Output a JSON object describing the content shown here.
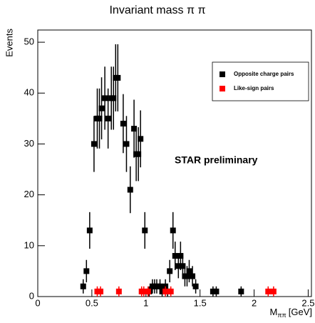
{
  "chart_data": {
    "type": "errorbar",
    "title": "Invariant mass π π",
    "y_label": "Events",
    "x_label": "M",
    "x_label_subscript": "ππ",
    "x_label_unit": "[GeV]",
    "annotation": "STAR preliminary",
    "xlim": [
      0,
      2.53
    ],
    "ylim": [
      0,
      52.4
    ],
    "xticks": [
      0,
      0.5,
      1,
      1.5,
      2,
      2.5
    ],
    "yticks": [
      0,
      10,
      20,
      30,
      40,
      50
    ],
    "legend": "upper right",
    "series": [
      {
        "name": "Opposite charge pairs",
        "color": "#000000",
        "x": [
          0.42,
          0.45,
          0.48,
          0.52,
          0.55,
          0.57,
          0.59,
          0.62,
          0.65,
          0.68,
          0.7,
          0.72,
          0.74,
          0.79,
          0.82,
          0.855,
          0.89,
          0.91,
          0.93,
          0.95,
          0.99,
          1.03,
          1.06,
          1.08,
          1.1,
          1.13,
          1.15,
          1.18,
          1.2,
          1.22,
          1.25,
          1.27,
          1.3,
          1.32,
          1.34,
          1.36,
          1.38,
          1.4,
          1.43,
          1.46,
          1.62,
          1.65,
          1.88
        ],
        "values": [
          2,
          5,
          13,
          30,
          35,
          35,
          37,
          39,
          35,
          39,
          39,
          43,
          43,
          34,
          30,
          21,
          33,
          28,
          28,
          31,
          13,
          1,
          2,
          2,
          2,
          2,
          1,
          2,
          1,
          5,
          13,
          8,
          6,
          8,
          6,
          4,
          4,
          5,
          4,
          2,
          1,
          1,
          1
        ],
        "errors": [
          1.4,
          2.2,
          3.6,
          5.5,
          5.9,
          5.9,
          6.1,
          6.2,
          5.9,
          6.2,
          6.2,
          6.6,
          6.6,
          5.8,
          5.5,
          4.6,
          5.7,
          5.3,
          5.3,
          5.6,
          3.6,
          1,
          1.4,
          1.4,
          1.4,
          1.4,
          1,
          1.4,
          1,
          2.2,
          3.6,
          2.8,
          2.4,
          2.8,
          2.4,
          2,
          2,
          2.2,
          2,
          1.4,
          1,
          1,
          1
        ]
      },
      {
        "name": "Like-sign pairs",
        "color": "#ff0000",
        "x": [
          0.55,
          0.58,
          0.75,
          0.96,
          0.98,
          1.02,
          1.18,
          1.23,
          2.13,
          2.18
        ],
        "values": [
          1,
          1,
          1,
          1,
          1,
          1,
          1,
          1,
          1,
          1
        ],
        "errors": [
          1,
          1,
          1,
          1,
          1,
          1,
          1,
          1,
          1,
          1
        ]
      }
    ]
  }
}
